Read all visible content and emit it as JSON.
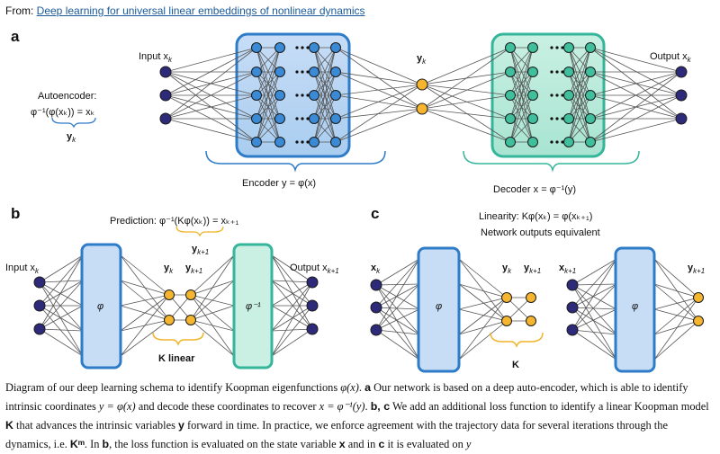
{
  "header": {
    "from_prefix": "From: ",
    "article_link": "Deep learning for universal linear embeddings of nonlinear dynamics"
  },
  "panels": {
    "a": {
      "letter": "a",
      "input": "Input x",
      "input_sub": "k",
      "output": "Output x",
      "output_sub": "k",
      "y": "y",
      "y_sub": "k",
      "autoencoder_title": "Autoencoder:",
      "autoencoder_eq": "φ⁻¹(φ(xₖ)) = xₖ",
      "autoencoder_y": "y",
      "autoencoder_y_sub": "k",
      "encoder": "Encoder  y = φ(x)",
      "decoder": "Decoder  x = φ⁻¹(y)"
    },
    "b": {
      "letter": "b",
      "prediction": "Prediction: φ⁻¹(Kφ(xₖ)) = xₖ₊₁",
      "input": "Input x",
      "input_sub": "k",
      "output": "Output x",
      "output_sub": "k+1",
      "yk": "y",
      "yk_sub": "k",
      "yk1": "y",
      "yk1_sub": "k+1",
      "yk1_top": "y",
      "yk1_top_sub": "k+1",
      "phi": "φ",
      "phi_inv": "φ⁻¹",
      "k_linear": "K linear"
    },
    "c": {
      "letter": "c",
      "linearity": "Linearity: Kφ(xₖ) = φ(xₖ₊₁)",
      "equivalent": "Network outputs equivalent",
      "xk": "x",
      "xk_sub": "k",
      "xk1": "x",
      "xk1_sub": "k+1",
      "yk": "y",
      "yk_sub": "k",
      "yk1": "y",
      "yk1_sub": "k+1",
      "yk1_right": "y",
      "yk1_right_sub": "k+1",
      "phi1": "φ",
      "phi2": "φ",
      "k": "K"
    }
  },
  "caption": {
    "p1": "Diagram of our deep learning schema to identify Koopman eigenfunctions ",
    "p1_math": "φ(x)",
    "p2": ". ",
    "a": "a",
    "p3": " Our network is based on a deep auto-encoder, which is able to identify intrinsic coordinates ",
    "p3_math": "y = φ(x)",
    "p4": " and decode these coordinates to recover ",
    "p4_math": "x = φ⁻¹(y)",
    "p5": ". ",
    "bc": "b, c",
    "p6": " We add an additional loss function to identify a linear Koopman model ",
    "K": "K",
    "p7": " that advances the intrinsic variables ",
    "y": "y",
    "p8": " forward in time. In practice, we enforce agreement with the trajectory data for several iterations through the dynamics, i.e. ",
    "Km": "Kᵐ",
    "p9": ". In ",
    "b": "b",
    "p10": ", the loss function is evaluated on the state variable ",
    "x": "x",
    "p11": " and in ",
    "c": "c",
    "p12": " it is evaluated on ",
    "y_end": "y"
  },
  "colors": {
    "input_node": "#2e2a7a",
    "encoder_node": "#3a8ad6",
    "decoder_node": "#3fbf9c",
    "latent_node": "#f5b52e",
    "encoder_box": "#2e7bc8",
    "decoder_box": "#35b59a",
    "edge": "#555555"
  }
}
